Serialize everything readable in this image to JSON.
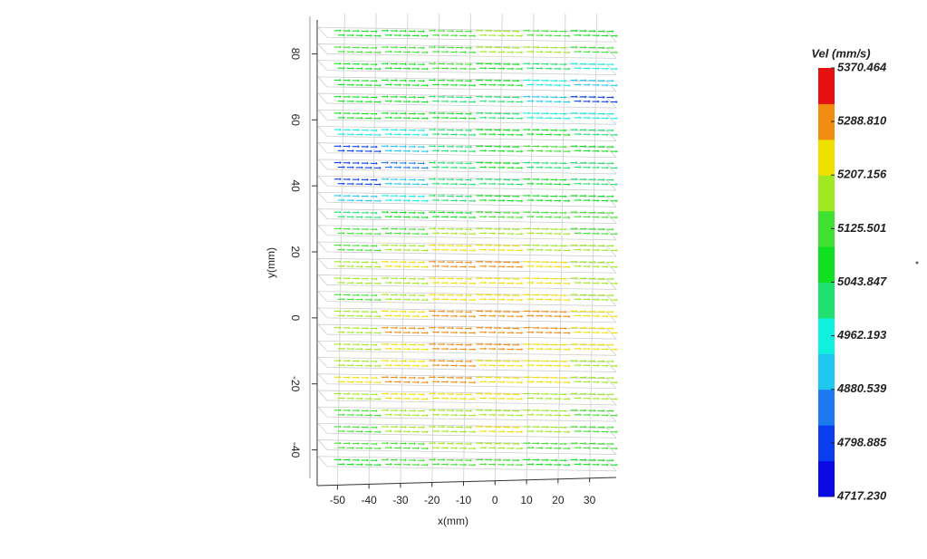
{
  "chart_data": {
    "type": "vector-field",
    "xlabel": "x(mm)",
    "ylabel": "y(mm)",
    "xlim": [
      -55,
      35
    ],
    "xticks": [
      -50,
      -40,
      -30,
      -20,
      -10,
      0,
      10,
      20,
      30
    ],
    "ylim": [
      -50,
      90
    ],
    "yticks": [
      -40,
      -20,
      0,
      20,
      40,
      60,
      80
    ],
    "x": [
      -45,
      -30,
      -15,
      0,
      15,
      30
    ],
    "layers": [
      85,
      80,
      75,
      70,
      65,
      60,
      55,
      50,
      45,
      40,
      35,
      30,
      25,
      20,
      15,
      10,
      5,
      0,
      -5,
      -10,
      -15,
      -20,
      -25,
      -30,
      -35,
      -40,
      -45
    ],
    "values": [
      [
        5090,
        5080,
        5100,
        5180,
        5150,
        5090
      ],
      [
        5100,
        5110,
        5150,
        5190,
        5170,
        5120
      ],
      [
        5080,
        5090,
        5100,
        5080,
        5020,
        4960
      ],
      [
        5060,
        5070,
        5080,
        5060,
        4960,
        4900
      ],
      [
        5080,
        5060,
        5040,
        5000,
        4900,
        4820
      ],
      [
        5070,
        5060,
        5050,
        5040,
        4980,
        4940
      ],
      [
        4940,
        4980,
        5040,
        5060,
        5050,
        5000
      ],
      [
        4800,
        4900,
        5000,
        5080,
        5110,
        5080
      ],
      [
        4780,
        4880,
        5000,
        5060,
        5040,
        5010
      ],
      [
        4790,
        4900,
        4990,
        5030,
        5050,
        5040
      ],
      [
        4920,
        4950,
        5000,
        5050,
        5060,
        5070
      ],
      [
        5040,
        5060,
        5080,
        5100,
        5120,
        5100
      ],
      [
        5100,
        5120,
        5180,
        5200,
        5190,
        5150
      ],
      [
        5150,
        5190,
        5260,
        5230,
        5200,
        5170
      ],
      [
        5170,
        5210,
        5280,
        5290,
        5240,
        5200
      ],
      [
        5160,
        5200,
        5230,
        5240,
        5220,
        5190
      ],
      [
        5130,
        5180,
        5220,
        5230,
        5210,
        5170
      ],
      [
        5160,
        5230,
        5300,
        5310,
        5280,
        5220
      ],
      [
        5180,
        5270,
        5310,
        5310,
        5290,
        5230
      ],
      [
        5190,
        5250,
        5280,
        5290,
        5260,
        5210
      ],
      [
        5200,
        5260,
        5270,
        5250,
        5230,
        5190
      ],
      [
        5240,
        5300,
        5290,
        5260,
        5220,
        5180
      ],
      [
        5190,
        5210,
        5220,
        5230,
        5200,
        5170
      ],
      [
        5130,
        5160,
        5180,
        5190,
        5160,
        5120
      ],
      [
        5150,
        5180,
        5200,
        5210,
        5190,
        5150
      ],
      [
        5120,
        5150,
        5170,
        5160,
        5140,
        5110
      ],
      [
        5080,
        5100,
        5120,
        5110,
        5090,
        5060
      ]
    ],
    "colorbar": {
      "title": "Vel (mm/s)",
      "clim": [
        4717.23,
        5370.464
      ],
      "ticks": [
        5370.464,
        {
          "value": 5288.81,
          "label": "5288.810"
        },
        5207.156,
        5125.501,
        5043.847,
        4962.193,
        4880.539,
        4798.885,
        {
          "value": 4717.23,
          "label": "4717.230"
        }
      ],
      "colors": [
        "#0a0ae6",
        "#0a3cf0",
        "#1e78f0",
        "#20c8f0",
        "#10f0e0",
        "#20e070",
        "#10e020",
        "#40e030",
        "#a0e820",
        "#f0e000",
        "#f08c10",
        "#e61010"
      ]
    }
  }
}
